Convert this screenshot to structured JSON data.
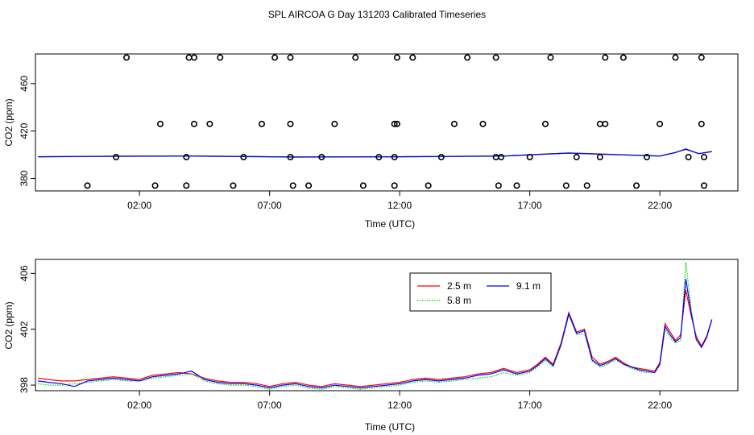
{
  "title": "SPL AIRCOA G  Day 131203  Calibrated Timeseries",
  "chart_data": [
    {
      "type": "scatter",
      "panel": "top",
      "xlabel": "Time (UTC)",
      "ylabel": "CO2 (ppm)",
      "x_unit": "hours UTC",
      "xlim": [
        -2.0,
        25.0
      ],
      "ylim": [
        369.5,
        485.0
      ],
      "xticks": [
        2,
        7,
        12,
        17,
        22
      ],
      "xtick_labels": [
        "02:00",
        "07:00",
        "12:00",
        "17:00",
        "22:00"
      ],
      "yticks": [
        380,
        420,
        460
      ],
      "ytick_labels": [
        "380",
        "420",
        "460"
      ],
      "points_series": {
        "name": "flagged calibration values",
        "marker": "open-circle",
        "color": "#000000",
        "x": [
          0.0,
          1.5,
          2.8,
          3.9,
          4.1,
          1.1,
          2.6,
          3.8,
          3.8,
          4.1,
          4.7,
          5.1,
          5.6,
          6.0,
          6.7,
          7.2,
          7.8,
          7.8,
          7.8,
          7.9,
          8.5,
          9.0,
          9.5,
          10.3,
          10.6,
          11.2,
          11.8,
          11.8,
          11.8,
          11.9,
          11.9,
          12.5,
          13.1,
          13.6,
          14.1,
          14.6,
          15.2,
          15.7,
          15.7,
          15.8,
          15.9,
          16.5,
          17.0,
          17.6,
          17.8,
          18.4,
          18.8,
          19.2,
          19.7,
          19.7,
          19.9,
          19.9,
          20.6,
          21.1,
          21.5,
          22.0,
          22.6,
          23.1,
          23.6,
          23.6,
          23.7,
          23.7
        ],
        "y": [
          374,
          482,
          426,
          482,
          426,
          398,
          374,
          374,
          398,
          482,
          426,
          482,
          374,
          398,
          426,
          482,
          426,
          398,
          482,
          374,
          374,
          398,
          426,
          482,
          374,
          398,
          374,
          398,
          426,
          482,
          426,
          482,
          374,
          398,
          426,
          482,
          426,
          398,
          482,
          374,
          398,
          374,
          398,
          426,
          482,
          374,
          398,
          374,
          398,
          426,
          482,
          426,
          482,
          374,
          398,
          426,
          482,
          398,
          426,
          482,
          374,
          398
        ]
      },
      "series": [
        {
          "color": "#ff0000",
          "x": [
            -1.9,
            1.0,
            4.0,
            8.0,
            12.0,
            16.0,
            18.5,
            22.0,
            22.6,
            23.0,
            23.5,
            24.0
          ],
          "y": [
            398.4,
            398.8,
            399.0,
            398.2,
            398.4,
            399.0,
            401.5,
            399.0,
            402.0,
            404.5,
            401.0,
            402.7
          ]
        },
        {
          "color": "#00cc00",
          "x": [
            -1.9,
            1.0,
            4.0,
            8.0,
            12.0,
            16.0,
            18.5,
            22.0,
            22.6,
            23.0,
            23.5,
            24.0
          ],
          "y": [
            398.2,
            398.6,
            398.8,
            398.0,
            398.2,
            398.8,
            401.3,
            398.8,
            401.8,
            405.0,
            400.8,
            402.7
          ]
        },
        {
          "color": "#0000ff",
          "x": [
            -1.9,
            1.0,
            4.0,
            8.0,
            12.0,
            16.0,
            18.5,
            22.0,
            22.6,
            23.0,
            23.5,
            24.0
          ],
          "y": [
            398.3,
            398.7,
            398.9,
            398.1,
            398.3,
            398.9,
            401.4,
            398.9,
            401.9,
            404.8,
            400.9,
            402.7
          ]
        }
      ]
    },
    {
      "type": "line",
      "panel": "bottom",
      "xlabel": "Time (UTC)",
      "ylabel": "CO2 (ppm)",
      "x_unit": "hours UTC",
      "xlim": [
        -2.0,
        25.0
      ],
      "ylim": [
        397.6,
        407.0
      ],
      "xticks": [
        2,
        7,
        12,
        17,
        22
      ],
      "xtick_labels": [
        "02:00",
        "07:00",
        "12:00",
        "17:00",
        "22:00"
      ],
      "yticks": [
        398,
        402,
        406
      ],
      "ytick_labels": [
        "398",
        "402",
        "406"
      ],
      "legend": {
        "placement": "top-center",
        "entries": [
          "2.5 m",
          "5.8 m",
          "9.1 m"
        ]
      },
      "series": [
        {
          "name": "2.5 m",
          "color": "#ff0000",
          "dash": "solid",
          "x": [
            -1.9,
            -1.5,
            -1.0,
            -0.5,
            0.0,
            0.5,
            1.0,
            1.5,
            2.0,
            2.5,
            3.0,
            3.5,
            4.0,
            4.5,
            5.0,
            5.5,
            6.0,
            6.5,
            7.0,
            7.5,
            8.0,
            8.5,
            9.0,
            9.5,
            10.0,
            10.5,
            11.0,
            11.5,
            12.0,
            12.5,
            13.0,
            13.5,
            14.0,
            14.5,
            15.0,
            15.5,
            16.0,
            16.5,
            17.0,
            17.3,
            17.6,
            17.9,
            18.2,
            18.5,
            18.8,
            19.1,
            19.4,
            19.7,
            20.0,
            20.3,
            20.6,
            20.9,
            21.2,
            21.5,
            21.8,
            22.0,
            22.2,
            22.4,
            22.6,
            22.8,
            23.0,
            23.2,
            23.4,
            23.6,
            23.8,
            24.0
          ],
          "y": [
            398.5,
            398.4,
            398.3,
            398.3,
            398.4,
            398.5,
            398.6,
            398.5,
            398.4,
            398.7,
            398.8,
            398.9,
            398.8,
            398.5,
            398.3,
            398.2,
            398.2,
            398.1,
            397.9,
            398.1,
            398.2,
            398.0,
            397.9,
            398.1,
            398.0,
            397.9,
            398.0,
            398.1,
            398.2,
            398.4,
            398.5,
            398.4,
            398.5,
            398.6,
            398.8,
            398.9,
            399.2,
            398.9,
            399.1,
            399.5,
            400.0,
            399.5,
            401.0,
            403.2,
            401.8,
            402.0,
            400.0,
            399.5,
            399.7,
            400.0,
            399.6,
            399.3,
            399.2,
            399.1,
            399.0,
            399.6,
            402.4,
            401.8,
            401.2,
            401.6,
            404.8,
            403.0,
            401.5,
            400.8,
            401.5,
            402.7
          ]
        },
        {
          "name": "5.8 m",
          "color": "#00cc00",
          "dash": "dotted",
          "x": [
            -1.9,
            -1.5,
            -1.0,
            -0.5,
            0.0,
            0.5,
            1.0,
            1.5,
            2.0,
            2.5,
            3.0,
            3.5,
            4.0,
            4.5,
            5.0,
            5.5,
            6.0,
            6.5,
            7.0,
            7.5,
            8.0,
            8.5,
            9.0,
            9.5,
            10.0,
            10.5,
            11.0,
            11.5,
            12.0,
            12.5,
            13.0,
            13.5,
            14.0,
            14.5,
            15.0,
            15.5,
            16.0,
            16.5,
            17.0,
            17.3,
            17.6,
            17.9,
            18.2,
            18.5,
            18.8,
            19.1,
            19.4,
            19.7,
            20.0,
            20.3,
            20.6,
            20.9,
            21.2,
            21.5,
            21.8,
            22.0,
            22.2,
            22.4,
            22.6,
            22.8,
            23.0,
            23.2,
            23.4,
            23.6,
            23.8,
            24.0
          ],
          "y": [
            398.1,
            398.0,
            398.0,
            398.1,
            398.2,
            398.3,
            398.4,
            398.3,
            398.3,
            398.5,
            398.6,
            398.7,
            398.8,
            398.3,
            398.1,
            398.0,
            398.0,
            397.9,
            397.7,
            397.9,
            398.0,
            397.8,
            397.7,
            397.9,
            397.8,
            397.7,
            397.8,
            397.9,
            398.0,
            398.2,
            398.3,
            398.2,
            398.3,
            398.4,
            398.5,
            398.6,
            398.9,
            398.7,
            398.9,
            399.3,
            399.8,
            399.3,
            400.8,
            403.0,
            401.6,
            401.7,
            399.7,
            399.3,
            399.5,
            399.8,
            399.5,
            399.2,
            399.0,
            398.9,
            398.9,
            399.4,
            402.0,
            401.4,
            401.0,
            401.2,
            406.8,
            403.5,
            401.2,
            400.7,
            401.4,
            402.7
          ]
        },
        {
          "name": "9.1 m",
          "color": "#0000ff",
          "dash": "solid",
          "x": [
            -1.9,
            -1.5,
            -1.0,
            -0.5,
            0.0,
            0.5,
            1.0,
            1.5,
            2.0,
            2.5,
            3.0,
            3.5,
            4.0,
            4.5,
            5.0,
            5.5,
            6.0,
            6.5,
            7.0,
            7.5,
            8.0,
            8.5,
            9.0,
            9.5,
            10.0,
            10.5,
            11.0,
            11.5,
            12.0,
            12.5,
            13.0,
            13.5,
            14.0,
            14.5,
            15.0,
            15.5,
            16.0,
            16.5,
            17.0,
            17.3,
            17.6,
            17.9,
            18.2,
            18.5,
            18.8,
            19.1,
            19.4,
            19.7,
            20.0,
            20.3,
            20.6,
            20.9,
            21.2,
            21.5,
            21.8,
            22.0,
            22.2,
            22.4,
            22.6,
            22.8,
            23.0,
            23.2,
            23.4,
            23.6,
            23.8,
            24.0
          ],
          "y": [
            398.3,
            398.2,
            398.1,
            397.9,
            398.3,
            398.4,
            398.5,
            398.4,
            398.3,
            398.6,
            398.7,
            398.8,
            399.0,
            398.4,
            398.2,
            398.1,
            398.1,
            398.0,
            397.8,
            398.0,
            398.1,
            397.9,
            397.8,
            398.0,
            397.9,
            397.8,
            397.9,
            398.0,
            398.1,
            398.3,
            398.4,
            398.3,
            398.4,
            398.5,
            398.7,
            398.8,
            399.1,
            398.8,
            399.0,
            399.4,
            399.9,
            399.4,
            400.9,
            403.1,
            401.7,
            401.9,
            399.8,
            399.4,
            399.6,
            399.9,
            399.5,
            399.3,
            399.1,
            399.0,
            398.9,
            399.5,
            402.2,
            401.6,
            401.1,
            401.4,
            405.6,
            403.2,
            401.3,
            400.7,
            401.4,
            402.7
          ]
        }
      ]
    }
  ]
}
